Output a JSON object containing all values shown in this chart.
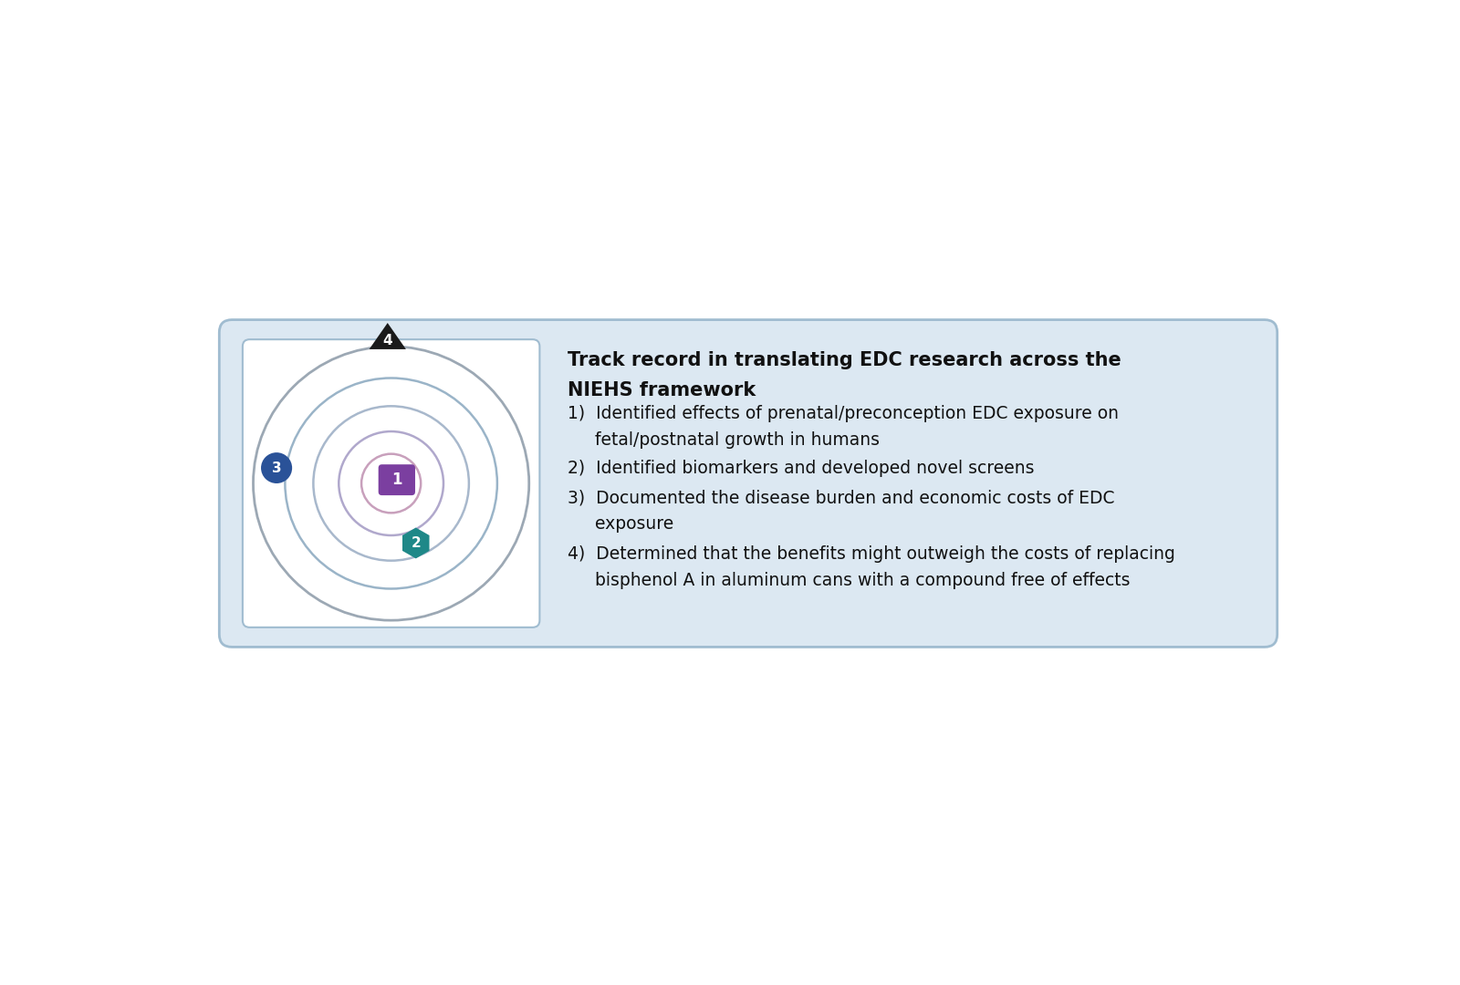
{
  "bg_color": "#ffffff",
  "box_bg_color": "#dce8f2",
  "box_border_color": "#a0bcd0",
  "inner_box_bg_color": "#ffffff",
  "inner_box_border_color": "#a0bcd0",
  "title_line1": "Track record in translating EDC research across the",
  "title_line2": "NIEHS framework",
  "item1_line1": "1)  Identified effects of prenatal/preconception EDC exposure on",
  "item1_line2": "     fetal/postnatal growth in humans",
  "item2": "2)  Identified biomarkers and developed novel screens",
  "item3_line1": "3)  Documented the disease burden and economic costs of EDC",
  "item3_line2": "     exposure",
  "item4_line1": "4)  Determined that the benefits might outweigh the costs of replacing",
  "item4_line2": "     bisphenol A in aluminum cans with a compound free of effects",
  "circle_radii": [
    1.95,
    1.5,
    1.1,
    0.74,
    0.42
  ],
  "circle_colors": [
    "#9ca8b4",
    "#9ab4c8",
    "#a8b8cc",
    "#b0a8cc",
    "#c8a0bc"
  ],
  "circle_linewidths": [
    2.0,
    1.8,
    1.8,
    1.8,
    1.8
  ],
  "marker1_color": "#7b3fa0",
  "marker2_color": "#1e8888",
  "marker3_color": "#2a5298",
  "marker4_color": "#1a1a1a",
  "title_fontsize": 15,
  "item_fontsize": 13.5
}
